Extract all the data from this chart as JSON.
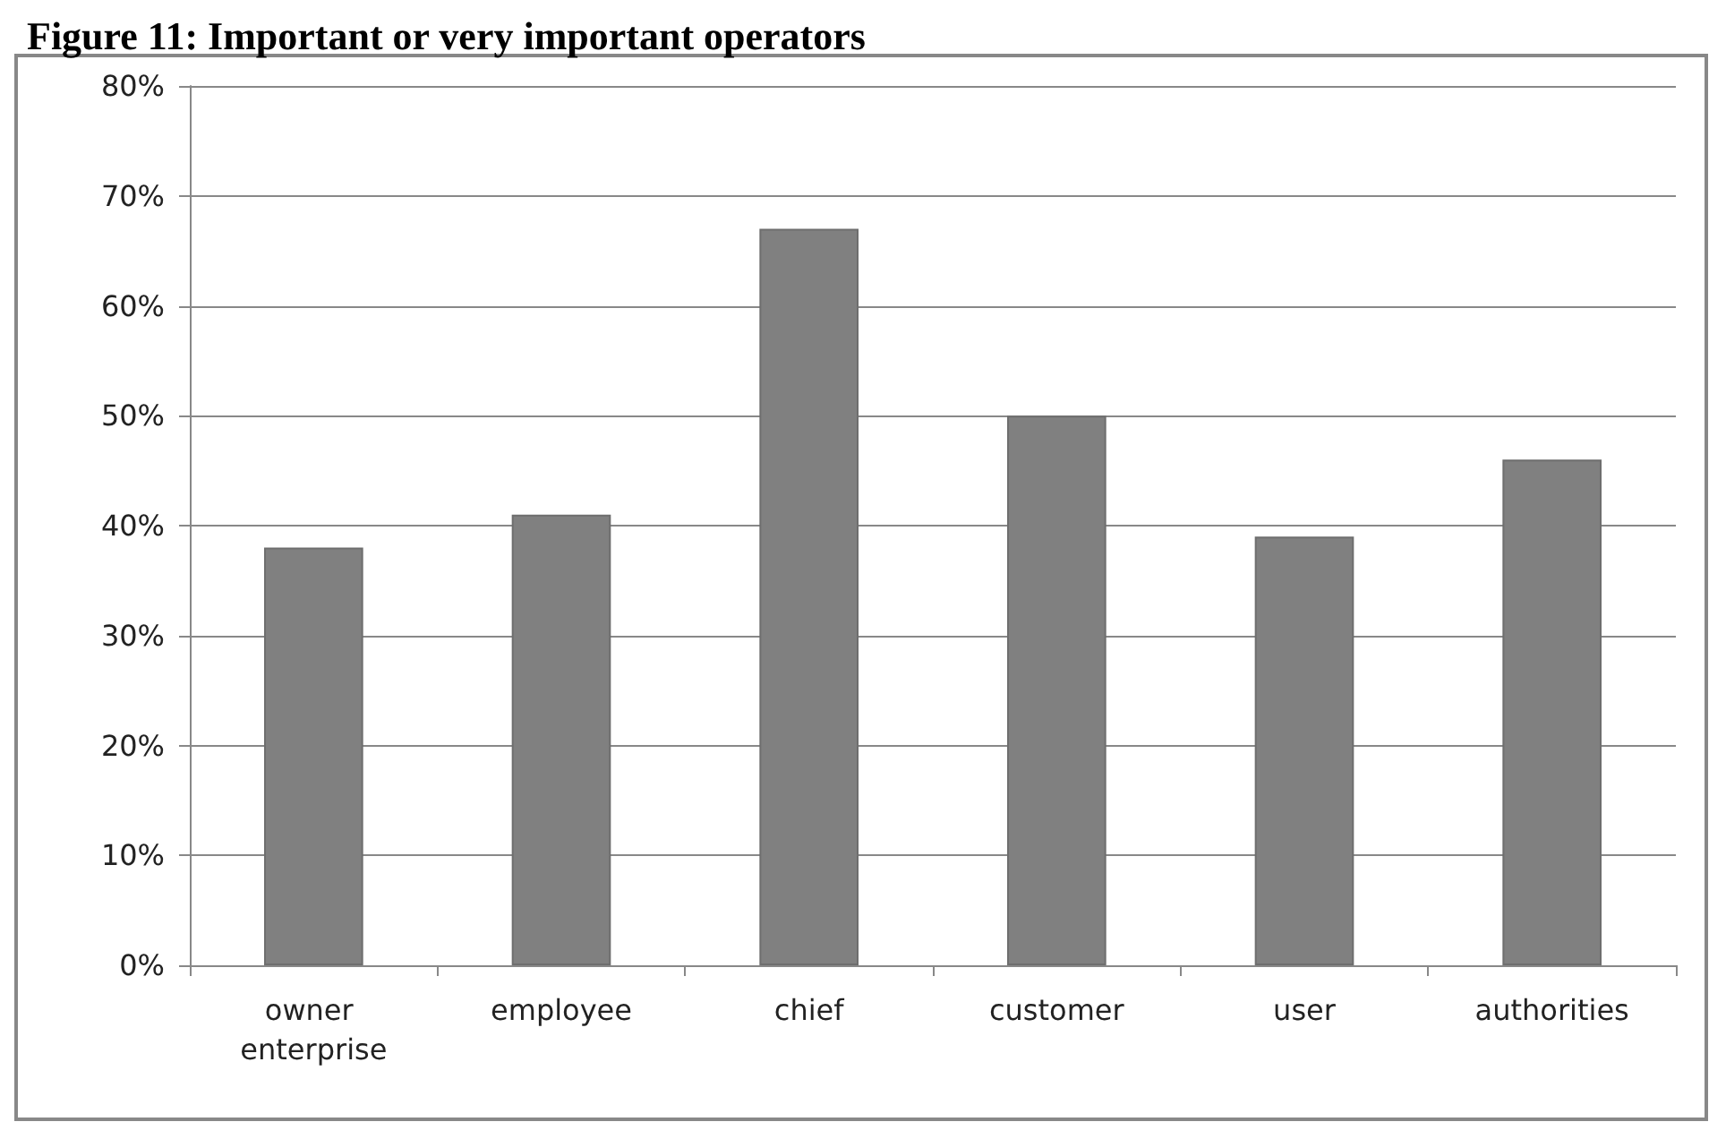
{
  "chart_data": {
    "type": "bar",
    "title": "Figure 11: Important or very important operators",
    "categories": [
      "owner enterprise",
      "employee",
      "chief",
      "customer",
      "user",
      "authorities"
    ],
    "values": [
      38,
      41,
      67,
      50,
      39,
      46
    ],
    "color": "#808080",
    "ylim": [
      0,
      80
    ],
    "yticks": [
      {
        "value": 0,
        "label": "0%"
      },
      {
        "value": 10,
        "label": "10%"
      },
      {
        "value": 20,
        "label": "20%"
      },
      {
        "value": 30,
        "label": "30%"
      },
      {
        "value": 40,
        "label": "40%"
      },
      {
        "value": 50,
        "label": "50%"
      },
      {
        "value": 60,
        "label": "60%"
      },
      {
        "value": 70,
        "label": "70%"
      },
      {
        "value": 80,
        "label": "80%"
      }
    ],
    "grid": "y"
  }
}
